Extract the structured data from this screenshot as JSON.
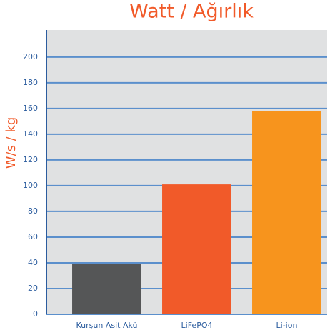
{
  "chart_data": {
    "type": "bar",
    "title": "Watt / Ağırlık",
    "y_label": "W/s / kg",
    "categories": [
      "Kurşun Asit Akü",
      "LiFePO4",
      "Li-ion"
    ],
    "values": [
      39,
      101,
      158
    ],
    "colors": [
      "#555657",
      "#f15a29",
      "#f7941d"
    ],
    "ylim": [
      0,
      221
    ],
    "yticks": [
      0,
      20,
      40,
      60,
      80,
      100,
      120,
      140,
      160,
      180,
      200
    ],
    "grid": true
  }
}
